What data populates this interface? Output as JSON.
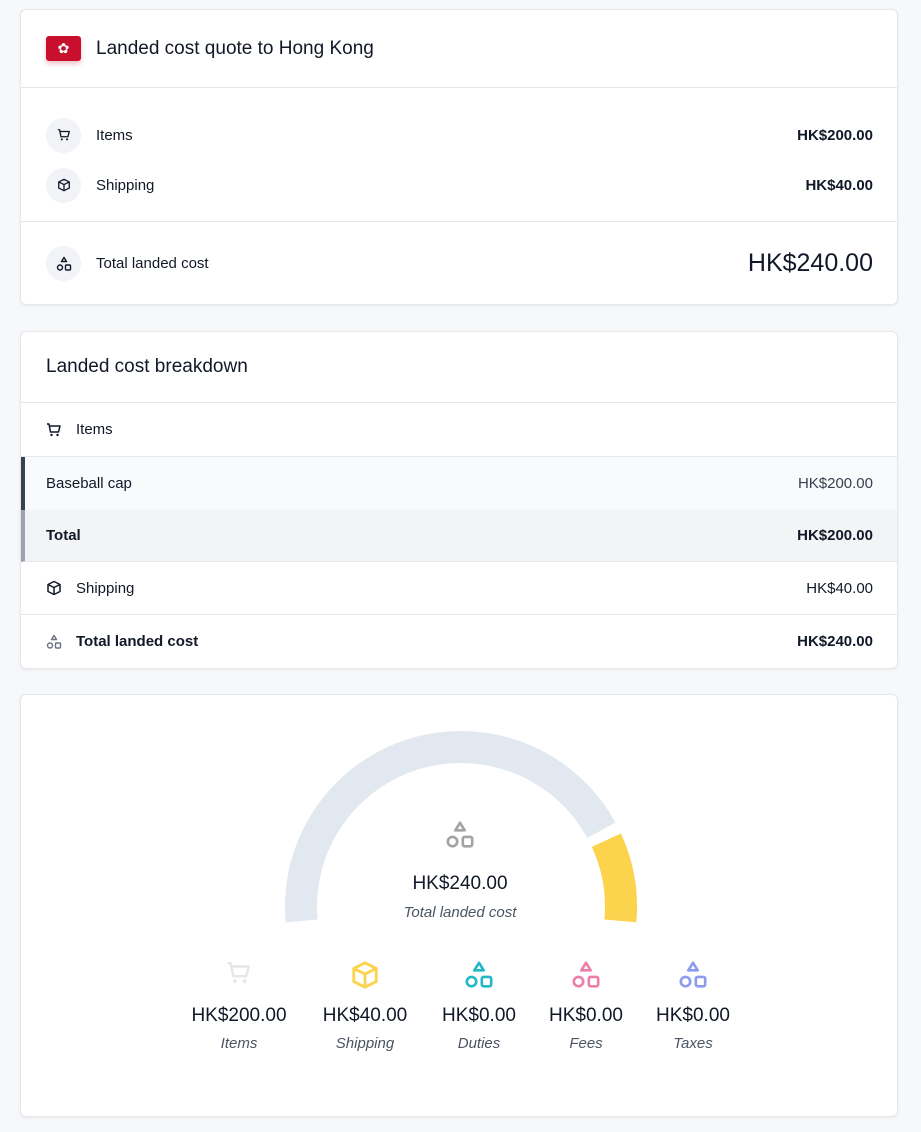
{
  "quote": {
    "title": "Landed cost quote to Hong Kong",
    "flag_icon": "hong-kong-flag",
    "rows": [
      {
        "label": "Items",
        "value": "HK$200.00",
        "icon": "cart-icon"
      },
      {
        "label": "Shipping",
        "value": "HK$40.00",
        "icon": "box-icon"
      }
    ],
    "total": {
      "label": "Total landed cost",
      "value": "HK$240.00",
      "icon": "shapes-icon"
    }
  },
  "breakdown": {
    "title": "Landed cost breakdown",
    "items_label": "Items",
    "items": [
      {
        "name": "Baseball cap",
        "value": "HK$200.00"
      }
    ],
    "items_total": {
      "label": "Total",
      "value": "HK$200.00"
    },
    "shipping": {
      "label": "Shipping",
      "value": "HK$40.00"
    },
    "total": {
      "label": "Total landed cost",
      "value": "HK$240.00"
    }
  },
  "gauge": {
    "total": "HK$240.00",
    "total_label": "Total landed cost",
    "segments": [
      {
        "name": "Items",
        "amount": 200,
        "color": "#e2e8f0"
      },
      {
        "name": "Shipping",
        "amount": 40,
        "color": "#fcd34d"
      }
    ],
    "stats": [
      {
        "value": "HK$200.00",
        "label": "Items",
        "color": "#e5e7eb"
      },
      {
        "value": "HK$40.00",
        "label": "Shipping",
        "color": "#fcd34d"
      },
      {
        "value": "HK$0.00",
        "label": "Duties",
        "color": "#22b8c8"
      },
      {
        "value": "HK$0.00",
        "label": "Fees",
        "color": "#ec7fa9"
      },
      {
        "value": "HK$0.00",
        "label": "Taxes",
        "color": "#8b9cf0"
      }
    ]
  }
}
